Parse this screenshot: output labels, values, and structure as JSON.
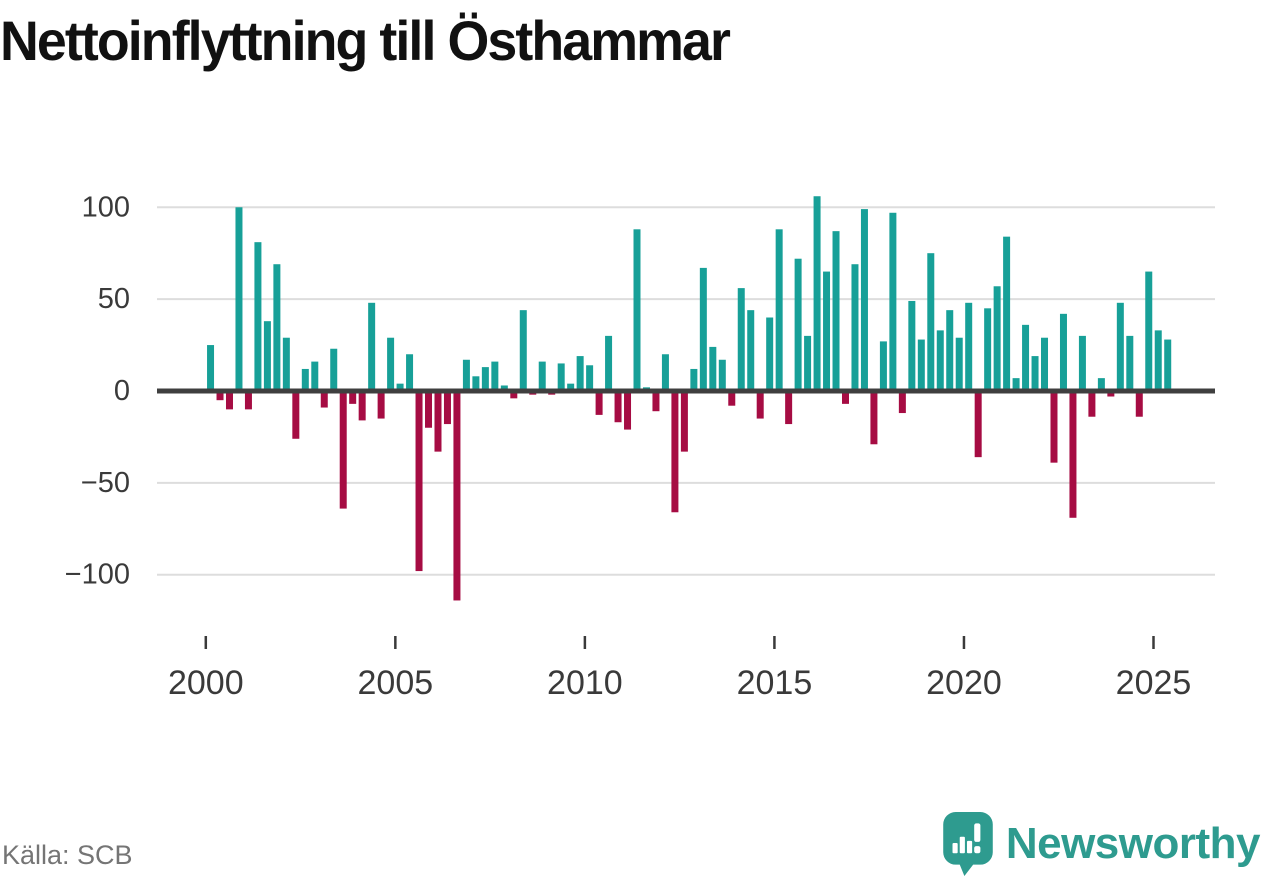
{
  "title": "Nettoinflyttning till Östhammar",
  "source": "Källa: SCB",
  "brand": {
    "name": "Newsworthy",
    "color": "#2E9B8F"
  },
  "colors": {
    "positive": "#17A098",
    "negative": "#A60C43",
    "axis": "#3F3F3F",
    "grid": "#DDDDDD",
    "tick_label": "#3A3A3A",
    "title": "#111111",
    "source": "#757575"
  },
  "chart_data": {
    "type": "bar",
    "title": "Nettoinflyttning till Östhammar",
    "xlabel": "",
    "ylabel": "",
    "x_unit": "quarter",
    "start_year": 2000,
    "start_quarter": "2000-Q1",
    "end_quarter": "2025-Q2",
    "x_tick_labels": [
      "2000",
      "2005",
      "2010",
      "2015",
      "2020",
      "2025"
    ],
    "y_ticks": [
      100,
      50,
      0,
      -50,
      -100
    ],
    "ylim": [
      -120,
      110
    ],
    "grid": true,
    "legend": false,
    "series": [
      {
        "name": "Nettoinflyttning",
        "values": [
          25,
          -5,
          -10,
          100,
          -10,
          81,
          38,
          69,
          29,
          -26,
          12,
          16,
          -9,
          23,
          -64,
          -7,
          -16,
          48,
          -15,
          29,
          4,
          20,
          -98,
          -20,
          -33,
          -18,
          -114,
          17,
          8,
          13,
          16,
          3,
          -4,
          44,
          -2,
          16,
          -2,
          15,
          4,
          19,
          14,
          -13,
          30,
          -17,
          -21,
          88,
          2,
          -11,
          20,
          -66,
          -33,
          12,
          67,
          24,
          17,
          -8,
          56,
          44,
          -15,
          40,
          88,
          -18,
          72,
          30,
          106,
          65,
          87,
          -7,
          69,
          99,
          -29,
          27,
          97,
          -12,
          49,
          28,
          75,
          33,
          44,
          29,
          48,
          -36,
          45,
          57,
          84,
          7,
          36,
          19,
          29,
          -39,
          42,
          -69,
          30,
          -14,
          7,
          -3,
          48,
          30,
          -14,
          65,
          33,
          28
        ]
      }
    ]
  }
}
